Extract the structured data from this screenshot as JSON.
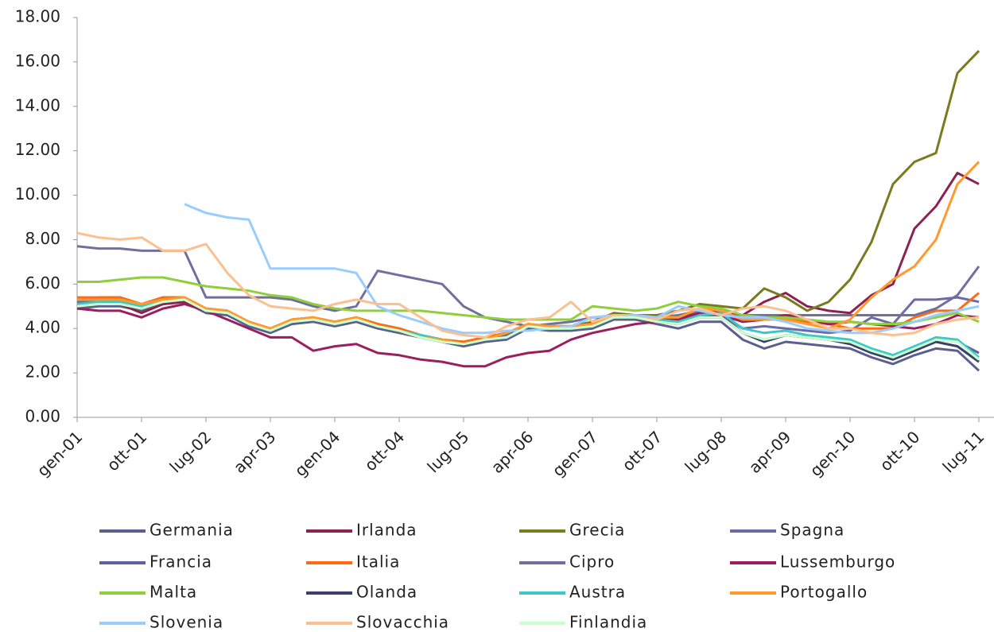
{
  "chart_data": {
    "type": "line",
    "categories": [
      "gen-01",
      null,
      null,
      "ott-01",
      null,
      null,
      "lug-02",
      null,
      null,
      "apr-03",
      null,
      null,
      "gen-04",
      null,
      null,
      "ott-04",
      null,
      null,
      "lug-05",
      null,
      null,
      "apr-06",
      null,
      null,
      "gen-07",
      null,
      null,
      "ott-07",
      null,
      null,
      "lug-08",
      null,
      null,
      "apr-09",
      null,
      null,
      "gen-10",
      null,
      null,
      "ott-10",
      null,
      null,
      "lug-11"
    ],
    "ylim": [
      0,
      18
    ],
    "yticks": [
      {
        "value": 0,
        "label": "0.00"
      },
      {
        "value": 2,
        "label": "2.00"
      },
      {
        "value": 4,
        "label": "4.00"
      },
      {
        "value": 6,
        "label": "6.00"
      },
      {
        "value": 8,
        "label": "8.00"
      },
      {
        "value": 10,
        "label": "10.00"
      },
      {
        "value": 12,
        "label": "12.00"
      },
      {
        "value": 14,
        "label": "14.00"
      },
      {
        "value": 16,
        "label": "16.00"
      },
      {
        "value": 18,
        "label": "18.00"
      }
    ],
    "grid": false,
    "series": [
      {
        "name": "Germania",
        "color": "#5b5f8f",
        "values": [
          4.9,
          5.0,
          5.0,
          4.8,
          5.1,
          5.2,
          4.7,
          4.6,
          4.1,
          3.8,
          4.2,
          4.3,
          4.1,
          4.3,
          4.0,
          3.8,
          3.6,
          3.4,
          3.2,
          3.4,
          3.5,
          4.0,
          3.9,
          3.9,
          4.0,
          4.4,
          4.4,
          4.2,
          4.0,
          4.3,
          4.3,
          3.5,
          3.1,
          3.4,
          3.3,
          3.2,
          3.1,
          2.7,
          2.4,
          2.8,
          3.1,
          3.0,
          2.1
        ]
      },
      {
        "name": "Irlanda",
        "color": "#8b2252",
        "values": [
          5.0,
          5.1,
          5.1,
          4.7,
          5.1,
          5.2,
          4.8,
          4.7,
          4.2,
          3.9,
          4.3,
          4.4,
          4.2,
          4.4,
          4.1,
          3.9,
          3.6,
          3.4,
          3.3,
          3.5,
          3.7,
          4.1,
          4.0,
          4.0,
          4.1,
          4.5,
          4.5,
          4.4,
          4.5,
          4.8,
          4.7,
          4.6,
          5.2,
          5.6,
          5.0,
          4.8,
          4.7,
          5.5,
          6.0,
          8.5,
          9.5,
          11.0,
          10.5
        ]
      },
      {
        "name": "Grecia",
        "color": "#7a7a1e",
        "values": [
          5.3,
          5.4,
          5.4,
          5.1,
          5.4,
          5.4,
          4.9,
          4.8,
          4.3,
          4.0,
          4.4,
          4.5,
          4.3,
          4.5,
          4.2,
          4.0,
          3.7,
          3.5,
          3.4,
          3.6,
          3.8,
          4.2,
          4.1,
          4.1,
          4.3,
          4.7,
          4.6,
          4.6,
          4.8,
          5.1,
          5.0,
          4.9,
          5.8,
          5.4,
          4.8,
          5.2,
          6.2,
          7.9,
          10.5,
          11.5,
          11.9,
          15.5,
          16.5
        ]
      },
      {
        "name": "Spagna",
        "color": "#6b6ba8",
        "values": [
          5.2,
          5.2,
          5.2,
          5.0,
          5.3,
          5.3,
          4.8,
          4.7,
          4.2,
          3.9,
          4.3,
          4.4,
          4.2,
          4.4,
          4.1,
          3.9,
          3.6,
          3.5,
          3.3,
          3.5,
          3.7,
          4.1,
          4.0,
          4.0,
          4.1,
          4.5,
          4.5,
          4.4,
          4.3,
          4.6,
          4.6,
          4.0,
          4.1,
          4.0,
          3.9,
          3.8,
          3.9,
          4.5,
          4.2,
          5.3,
          5.3,
          5.4,
          5.2
        ]
      },
      {
        "name": "Francia",
        "color": "#6060a0",
        "values": [
          5.1,
          5.2,
          5.2,
          5.0,
          5.2,
          5.3,
          4.8,
          4.7,
          4.2,
          3.9,
          4.3,
          4.4,
          4.2,
          4.4,
          4.1,
          3.9,
          3.7,
          3.5,
          3.3,
          3.5,
          3.6,
          4.1,
          4.0,
          4.0,
          4.1,
          4.5,
          4.5,
          4.3,
          4.2,
          4.5,
          4.6,
          3.8,
          3.5,
          3.7,
          3.6,
          3.5,
          3.4,
          3.0,
          2.7,
          3.1,
          3.5,
          3.4,
          2.9
        ]
      },
      {
        "name": "Italia",
        "color": "#ff6a13",
        "values": [
          5.4,
          5.4,
          5.4,
          5.1,
          5.4,
          5.4,
          4.9,
          4.8,
          4.3,
          4.0,
          4.4,
          4.5,
          4.3,
          4.5,
          4.2,
          4.0,
          3.7,
          3.5,
          3.4,
          3.6,
          3.8,
          4.2,
          4.1,
          4.1,
          4.2,
          4.6,
          4.6,
          4.5,
          4.5,
          4.9,
          4.9,
          4.3,
          4.4,
          4.5,
          4.3,
          4.2,
          4.0,
          4.0,
          4.0,
          4.5,
          4.8,
          4.8,
          5.6
        ]
      },
      {
        "name": "Cipro",
        "color": "#7070a0",
        "values": [
          7.7,
          7.6,
          7.6,
          7.5,
          7.5,
          7.5,
          5.4,
          5.4,
          5.4,
          5.4,
          5.3,
          5.0,
          4.8,
          5.0,
          6.6,
          6.4,
          6.2,
          6.0,
          5.0,
          4.5,
          4.3,
          4.1,
          4.2,
          4.3,
          4.5,
          4.5,
          4.6,
          4.5,
          4.6,
          4.8,
          4.6,
          4.6,
          4.6,
          4.6,
          4.6,
          4.6,
          4.6,
          4.6,
          4.6,
          4.6,
          4.9,
          5.5,
          6.8
        ]
      },
      {
        "name": "Lussemburgo",
        "color": "#9b1e5e",
        "values": [
          4.9,
          4.8,
          4.8,
          4.5,
          4.9,
          5.1,
          4.8,
          4.4,
          4.0,
          3.6,
          3.6,
          3.0,
          3.2,
          3.3,
          2.9,
          2.8,
          2.6,
          2.5,
          2.3,
          2.3,
          2.7,
          2.9,
          3.0,
          3.5,
          3.8,
          4.0,
          4.2,
          4.3,
          4.4,
          4.7,
          4.6,
          4.3,
          4.4,
          4.6,
          4.4,
          4.2,
          4.3,
          4.2,
          4.1,
          4.0,
          4.2,
          4.6,
          4.5
        ]
      },
      {
        "name": "Malta",
        "color": "#8fcf3c",
        "values": [
          6.1,
          6.1,
          6.2,
          6.3,
          6.3,
          6.1,
          5.9,
          5.8,
          5.7,
          5.5,
          5.4,
          5.1,
          4.9,
          4.8,
          4.8,
          4.8,
          4.8,
          4.7,
          4.6,
          4.5,
          4.4,
          4.4,
          4.4,
          4.4,
          5.0,
          4.9,
          4.8,
          4.9,
          5.2,
          5.0,
          4.9,
          4.6,
          4.5,
          4.5,
          4.4,
          4.3,
          4.3,
          4.2,
          4.2,
          4.3,
          4.5,
          4.7,
          4.3
        ]
      },
      {
        "name": "Olanda",
        "color": "#3a3f6e",
        "values": [
          5.0,
          5.1,
          5.1,
          4.9,
          5.2,
          5.3,
          4.8,
          4.7,
          4.2,
          3.9,
          4.3,
          4.4,
          4.2,
          4.4,
          4.1,
          3.9,
          3.6,
          3.4,
          3.3,
          3.5,
          3.6,
          4.1,
          4.0,
          4.0,
          4.1,
          4.5,
          4.5,
          4.3,
          4.2,
          4.5,
          4.5,
          3.8,
          3.4,
          3.7,
          3.6,
          3.5,
          3.3,
          2.9,
          2.6,
          3.0,
          3.4,
          3.2,
          2.5
        ]
      },
      {
        "name": "Austra",
        "color": "#3cc8c8",
        "values": [
          5.1,
          5.2,
          5.2,
          5.0,
          5.2,
          5.3,
          4.8,
          4.7,
          4.2,
          3.9,
          4.3,
          4.4,
          4.2,
          4.4,
          4.1,
          3.9,
          3.7,
          3.5,
          3.3,
          3.5,
          3.6,
          4.1,
          4.0,
          4.0,
          4.1,
          4.5,
          4.5,
          4.4,
          4.3,
          4.6,
          4.7,
          4.0,
          3.8,
          3.9,
          3.7,
          3.6,
          3.5,
          3.1,
          2.8,
          3.2,
          3.6,
          3.5,
          2.7
        ]
      },
      {
        "name": "Portogallo",
        "color": "#ff9a2e",
        "values": [
          5.3,
          5.3,
          5.3,
          5.1,
          5.3,
          5.4,
          4.9,
          4.8,
          4.3,
          4.0,
          4.4,
          4.5,
          4.3,
          4.5,
          4.1,
          3.9,
          3.6,
          3.5,
          3.3,
          3.5,
          3.8,
          4.2,
          4.1,
          4.1,
          4.2,
          4.6,
          4.6,
          4.5,
          4.5,
          4.9,
          4.8,
          4.4,
          4.4,
          4.4,
          4.2,
          4.0,
          4.4,
          5.4,
          6.2,
          6.8,
          8.0,
          10.5,
          11.5
        ]
      },
      {
        "name": "Slovenia",
        "color": "#99ccff",
        "values": [
          null,
          null,
          null,
          null,
          null,
          9.6,
          9.2,
          9.0,
          8.9,
          6.7,
          6.7,
          6.7,
          6.7,
          6.5,
          5.0,
          4.6,
          4.3,
          4.0,
          3.8,
          3.8,
          3.9,
          3.9,
          4.0,
          4.1,
          4.5,
          4.6,
          4.6,
          4.5,
          5.0,
          4.8,
          4.6,
          4.5,
          4.5,
          4.3,
          4.0,
          3.9,
          3.8,
          3.8,
          4.0,
          4.3,
          4.6,
          4.8,
          5.0
        ]
      },
      {
        "name": "Slovacchia",
        "color": "#fac090",
        "values": [
          8.3,
          8.1,
          8.0,
          8.1,
          7.5,
          7.5,
          7.8,
          6.5,
          5.5,
          5.0,
          4.9,
          4.8,
          5.1,
          5.3,
          5.1,
          5.1,
          4.5,
          3.9,
          3.7,
          3.6,
          4.1,
          4.4,
          4.5,
          5.2,
          4.3,
          4.6,
          4.5,
          4.4,
          4.8,
          4.9,
          4.6,
          4.9,
          5.0,
          4.8,
          4.4,
          4.0,
          4.0,
          3.8,
          3.7,
          3.8,
          4.2,
          4.4,
          4.5
        ]
      },
      {
        "name": "Finlandia",
        "color": "#ccffcc",
        "values": [
          5.0,
          5.1,
          5.1,
          4.9,
          5.2,
          5.3,
          4.8,
          4.7,
          4.2,
          3.9,
          4.3,
          4.4,
          4.2,
          4.4,
          4.1,
          3.9,
          3.6,
          3.4,
          3.3,
          3.5,
          3.6,
          4.1,
          4.0,
          4.0,
          4.1,
          4.5,
          4.5,
          4.3,
          4.2,
          4.5,
          4.5,
          3.8,
          3.5,
          3.7,
          3.6,
          3.5,
          3.4,
          3.0,
          2.7,
          3.1,
          3.5,
          3.4,
          2.6
        ]
      }
    ]
  }
}
